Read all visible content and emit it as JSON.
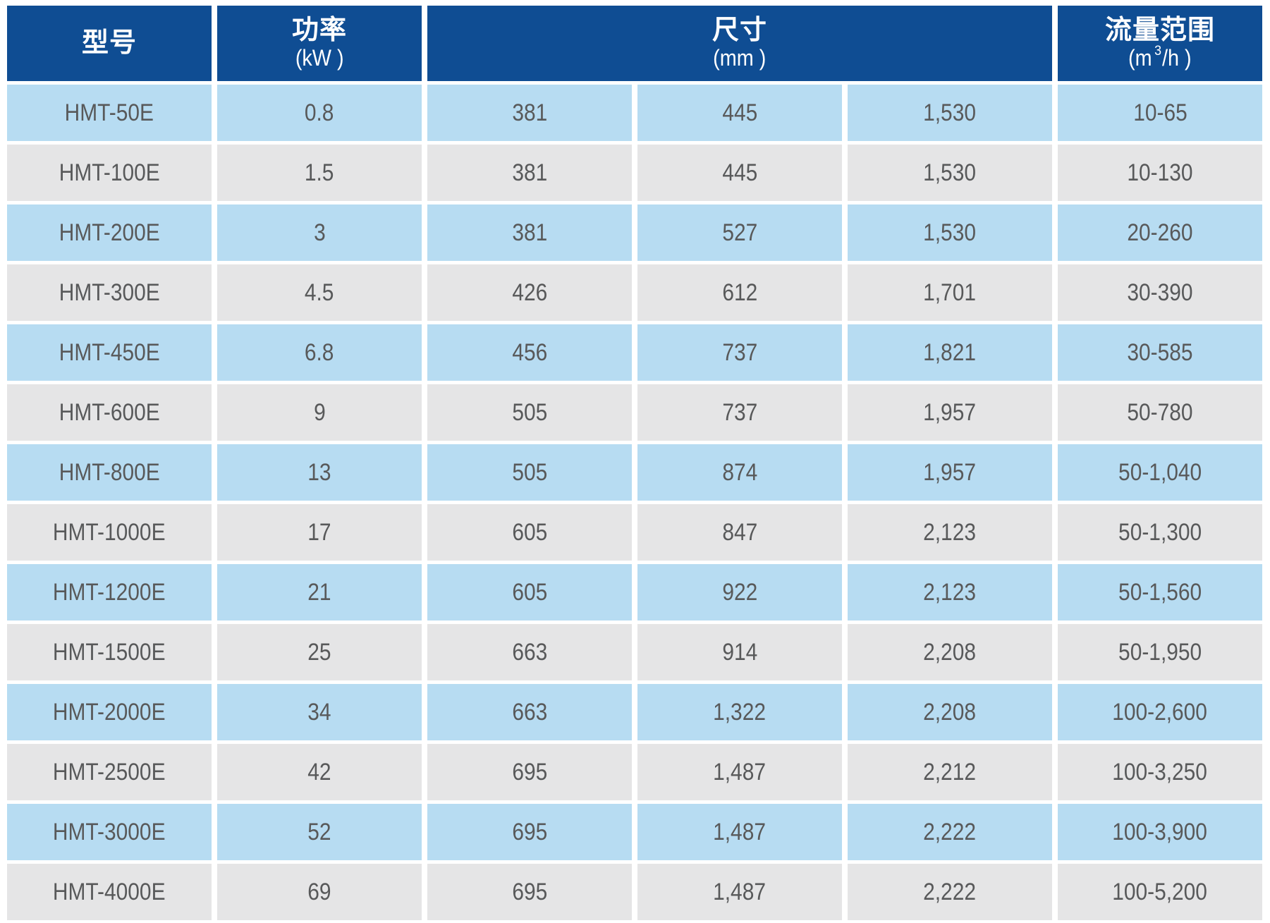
{
  "colors": {
    "header_background": "#0f4d93",
    "header_text": "#ffffff",
    "row_blue": "#b7dcf2",
    "row_gray": "#e5e5e6",
    "cell_text": "#58595a",
    "page_background": "#ffffff"
  },
  "table": {
    "header": {
      "model": {
        "title": "型号"
      },
      "power": {
        "title": "功率",
        "sub": "(kW )"
      },
      "dimensions": {
        "title": "尺寸",
        "sub": "(mm )"
      },
      "flow": {
        "title": "流量范围",
        "sub_prefix": "(m",
        "sub_sup": "3",
        "sub_suffix": "/h )"
      }
    },
    "rows": [
      {
        "model": "HMT-50E",
        "power_kw": "0.8",
        "dim1_mm": "381",
        "dim2_mm": "445",
        "dim3_mm": "1,530",
        "flow_range": "10-65"
      },
      {
        "model": "HMT-100E",
        "power_kw": "1.5",
        "dim1_mm": "381",
        "dim2_mm": "445",
        "dim3_mm": "1,530",
        "flow_range": "10-130"
      },
      {
        "model": "HMT-200E",
        "power_kw": "3",
        "dim1_mm": "381",
        "dim2_mm": "527",
        "dim3_mm": "1,530",
        "flow_range": "20-260"
      },
      {
        "model": "HMT-300E",
        "power_kw": "4.5",
        "dim1_mm": "426",
        "dim2_mm": "612",
        "dim3_mm": "1,701",
        "flow_range": "30-390"
      },
      {
        "model": "HMT-450E",
        "power_kw": "6.8",
        "dim1_mm": "456",
        "dim2_mm": "737",
        "dim3_mm": "1,821",
        "flow_range": "30-585"
      },
      {
        "model": "HMT-600E",
        "power_kw": "9",
        "dim1_mm": "505",
        "dim2_mm": "737",
        "dim3_mm": "1,957",
        "flow_range": "50-780"
      },
      {
        "model": "HMT-800E",
        "power_kw": "13",
        "dim1_mm": "505",
        "dim2_mm": "874",
        "dim3_mm": "1,957",
        "flow_range": "50-1,040"
      },
      {
        "model": "HMT-1000E",
        "power_kw": "17",
        "dim1_mm": "605",
        "dim2_mm": "847",
        "dim3_mm": "2,123",
        "flow_range": "50-1,300"
      },
      {
        "model": "HMT-1200E",
        "power_kw": "21",
        "dim1_mm": "605",
        "dim2_mm": "922",
        "dim3_mm": "2,123",
        "flow_range": "50-1,560"
      },
      {
        "model": "HMT-1500E",
        "power_kw": "25",
        "dim1_mm": "663",
        "dim2_mm": "914",
        "dim3_mm": "2,208",
        "flow_range": "50-1,950"
      },
      {
        "model": "HMT-2000E",
        "power_kw": "34",
        "dim1_mm": "663",
        "dim2_mm": "1,322",
        "dim3_mm": "2,208",
        "flow_range": "100-2,600"
      },
      {
        "model": "HMT-2500E",
        "power_kw": "42",
        "dim1_mm": "695",
        "dim2_mm": "1,487",
        "dim3_mm": "2,212",
        "flow_range": "100-3,250"
      },
      {
        "model": "HMT-3000E",
        "power_kw": "52",
        "dim1_mm": "695",
        "dim2_mm": "1,487",
        "dim3_mm": "2,222",
        "flow_range": "100-3,900"
      },
      {
        "model": "HMT-4000E",
        "power_kw": "69",
        "dim1_mm": "695",
        "dim2_mm": "1,487",
        "dim3_mm": "2,222",
        "flow_range": "100-5,200"
      }
    ]
  }
}
